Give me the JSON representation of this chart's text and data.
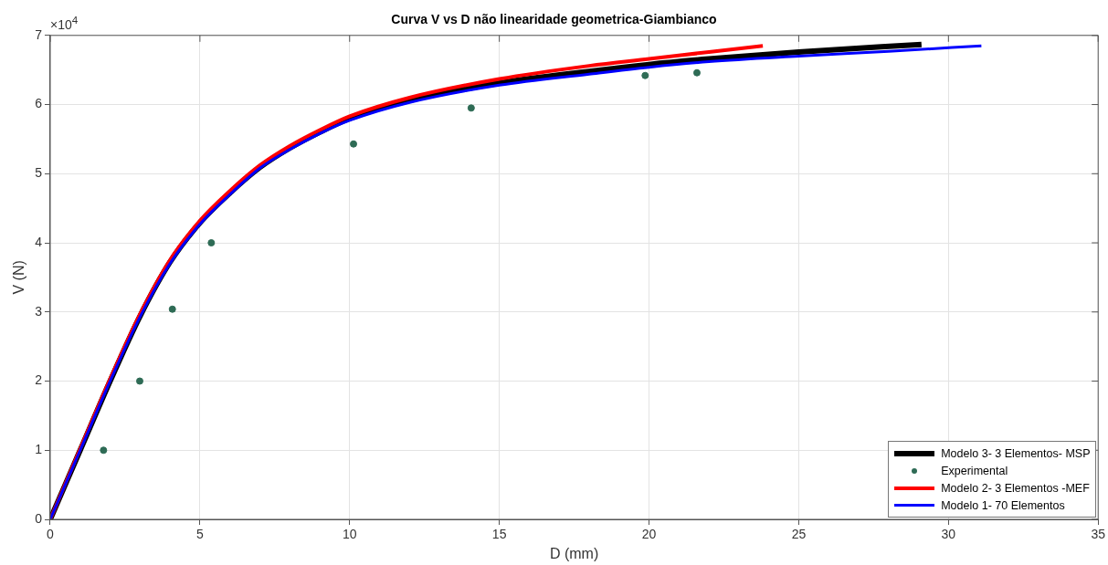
{
  "chart_data": {
    "type": "line",
    "title": "Curva V vs D não linearidade geometrica-Giambianco",
    "xlabel": "D (mm)",
    "ylabel": "V (N)",
    "annotations": [
      "×10$^{4}$"
    ],
    "xlim": [
      0,
      35
    ],
    "xticks": [
      0,
      5,
      10,
      15,
      20,
      25,
      30,
      35
    ],
    "ylim": [
      0,
      7
    ],
    "yticks": [
      0,
      1,
      2,
      3,
      4,
      5,
      6,
      7
    ],
    "grid": true,
    "legend": "bottom right",
    "line_style": "solid",
    "series": [
      {
        "name": "Modelo 3- 3 Elementos- MSP",
        "color": "#000000",
        "x": [
          0,
          1,
          2,
          3,
          4,
          5,
          6,
          7,
          8,
          9,
          10,
          12,
          15,
          18,
          20,
          22,
          25,
          29.1
        ],
        "values": [
          0,
          1.0,
          2.0,
          2.94,
          3.72,
          4.29,
          4.72,
          5.09,
          5.37,
          5.6,
          5.8,
          6.06,
          6.31,
          6.48,
          6.58,
          6.66,
          6.76,
          6.87
        ]
      },
      {
        "name": "Experimental",
        "type": "scatter",
        "marker": "circle",
        "color": "#2e6b55",
        "x": [
          1.78,
          2.99,
          4.08,
          5.38,
          10.13,
          14.06,
          19.87,
          21.6
        ],
        "values": [
          1.0,
          2.0,
          3.04,
          4.0,
          5.43,
          5.95,
          6.42,
          6.46
        ]
      },
      {
        "name": "Modelo 2- 3 Elementos -MEF",
        "color": "#ff0000",
        "x": [
          0,
          1,
          2,
          3,
          4,
          5,
          6,
          7,
          8,
          9,
          10,
          12,
          15,
          18,
          20,
          22,
          23.8
        ],
        "values": [
          0,
          1.02,
          2.03,
          2.97,
          3.75,
          4.32,
          4.75,
          5.12,
          5.4,
          5.63,
          5.83,
          6.1,
          6.37,
          6.56,
          6.66,
          6.76,
          6.85
        ]
      },
      {
        "name": "Modelo 1- 70 Elementos",
        "color": "#0000ff",
        "x": [
          0,
          1,
          2,
          3,
          4,
          5,
          6,
          7,
          8,
          9,
          10,
          12,
          15,
          18,
          20,
          22,
          25,
          28,
          31.1
        ],
        "values": [
          0,
          1.0,
          2.0,
          2.93,
          3.7,
          4.27,
          4.7,
          5.08,
          5.35,
          5.58,
          5.77,
          6.03,
          6.28,
          6.44,
          6.54,
          6.62,
          6.7,
          6.77,
          6.85
        ]
      }
    ]
  }
}
